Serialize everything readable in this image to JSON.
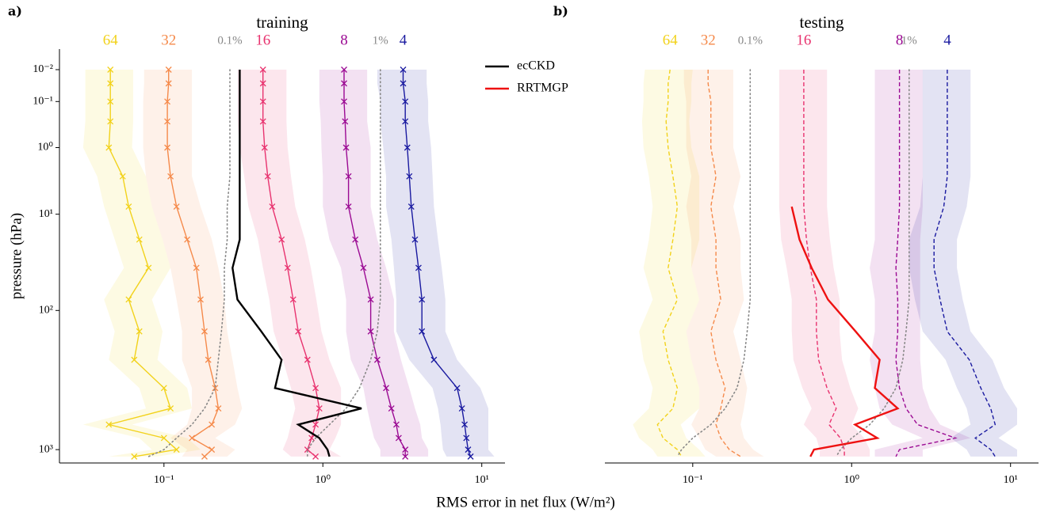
{
  "x_axis_label": "RMS error in net flux (W/m²)",
  "chart_data": [
    {
      "type": "line",
      "panel_label": "a)",
      "title": "training",
      "ylabel": "pressure (hPa)",
      "log_x": true,
      "yscale": "power",
      "yscale_exponent": 0.16,
      "y_inverted": true,
      "xlim": [
        0.022,
        14
      ],
      "ylim": [
        0.0012,
        1200
      ],
      "xticks": [
        {
          "value": 0.1,
          "label": "10⁻¹"
        },
        {
          "value": 1,
          "label": "10⁰"
        },
        {
          "value": 10,
          "label": "10¹"
        }
      ],
      "yticks": [
        {
          "value": 0.01,
          "label": "10⁻²"
        },
        {
          "value": 0.1,
          "label": "10⁻¹"
        },
        {
          "value": 1,
          "label": "10⁰"
        },
        {
          "value": 10,
          "label": "10¹"
        },
        {
          "value": 100,
          "label": "10²"
        },
        {
          "value": 1000,
          "label": "10³"
        }
      ],
      "legend": "upper right",
      "y": [
        0.01,
        0.03,
        0.1,
        0.3,
        1,
        3,
        8,
        20,
        40,
        80,
        150,
        250,
        400,
        550,
        700,
        850,
        1000,
        1100
      ],
      "series": [
        {
          "name": "64",
          "color": "#f2d21b",
          "style": "solid",
          "marker": "x",
          "values": [
            0.046,
            0.046,
            0.046,
            0.046,
            0.045,
            0.055,
            0.06,
            0.07,
            0.08,
            0.06,
            0.07,
            0.065,
            0.1,
            0.11,
            0.045,
            0.1,
            0.12,
            0.065
          ],
          "lower": [
            0.032,
            0.032,
            0.032,
            0.032,
            0.031,
            0.038,
            0.042,
            0.049,
            0.056,
            0.042,
            0.049,
            0.045,
            0.07,
            0.077,
            0.031,
            0.07,
            0.084,
            0.045
          ],
          "upper": [
            0.064,
            0.064,
            0.064,
            0.064,
            0.063,
            0.077,
            0.084,
            0.098,
            0.11,
            0.084,
            0.098,
            0.091,
            0.14,
            0.15,
            0.063,
            0.14,
            0.17,
            0.091
          ]
        },
        {
          "name": "32",
          "color": "#f58a4b",
          "style": "solid",
          "marker": "x",
          "values": [
            0.107,
            0.107,
            0.105,
            0.105,
            0.105,
            0.11,
            0.12,
            0.14,
            0.16,
            0.17,
            0.18,
            0.19,
            0.21,
            0.22,
            0.2,
            0.15,
            0.2,
            0.18
          ],
          "lower": [
            0.075,
            0.075,
            0.074,
            0.074,
            0.074,
            0.077,
            0.084,
            0.098,
            0.11,
            0.12,
            0.13,
            0.13,
            0.15,
            0.15,
            0.14,
            0.11,
            0.14,
            0.13
          ],
          "upper": [
            0.15,
            0.15,
            0.15,
            0.15,
            0.15,
            0.15,
            0.17,
            0.2,
            0.22,
            0.24,
            0.25,
            0.27,
            0.29,
            0.31,
            0.28,
            0.21,
            0.28,
            0.25
          ]
        },
        {
          "name": "0.1%",
          "color": "#888888",
          "style": "dotted",
          "values": [
            0.26,
            0.26,
            0.26,
            0.26,
            0.26,
            0.26,
            0.25,
            0.25,
            0.24,
            0.24,
            0.23,
            0.22,
            0.21,
            0.18,
            0.15,
            0.12,
            0.1,
            0.08
          ]
        },
        {
          "name": "16",
          "color": "#e8336f",
          "style": "solid",
          "marker": "x",
          "values": [
            0.42,
            0.42,
            0.42,
            0.42,
            0.43,
            0.45,
            0.48,
            0.55,
            0.6,
            0.65,
            0.7,
            0.8,
            0.9,
            0.95,
            0.9,
            0.85,
            0.8,
            0.9
          ],
          "lower": [
            0.29,
            0.29,
            0.29,
            0.29,
            0.3,
            0.32,
            0.34,
            0.39,
            0.42,
            0.46,
            0.49,
            0.56,
            0.63,
            0.67,
            0.63,
            0.6,
            0.56,
            0.63
          ],
          "upper": [
            0.59,
            0.59,
            0.59,
            0.59,
            0.6,
            0.63,
            0.67,
            0.77,
            0.84,
            0.91,
            0.98,
            1.1,
            1.3,
            1.3,
            1.3,
            1.2,
            1.1,
            1.3
          ]
        },
        {
          "name": "8",
          "color": "#9b0a93",
          "style": "solid",
          "marker": "x",
          "values": [
            1.36,
            1.36,
            1.36,
            1.38,
            1.4,
            1.45,
            1.45,
            1.6,
            1.8,
            2.0,
            2.0,
            2.2,
            2.5,
            2.7,
            2.9,
            3.0,
            3.3,
            3.3
          ],
          "lower": [
            0.95,
            0.95,
            0.95,
            0.97,
            0.98,
            1.0,
            1.0,
            1.1,
            1.3,
            1.4,
            1.4,
            1.5,
            1.8,
            1.9,
            2.0,
            2.1,
            2.3,
            2.3
          ],
          "upper": [
            1.9,
            1.9,
            1.9,
            1.9,
            2.0,
            2.0,
            2.0,
            2.2,
            2.5,
            2.8,
            2.8,
            3.1,
            3.5,
            3.8,
            4.1,
            4.2,
            4.6,
            4.6
          ]
        },
        {
          "name": "1%",
          "color": "#888888",
          "style": "dotted",
          "values": [
            2.3,
            2.3,
            2.3,
            2.3,
            2.3,
            2.3,
            2.3,
            2.3,
            2.3,
            2.3,
            2.2,
            2.0,
            1.7,
            1.4,
            1.1,
            0.9,
            0.8,
            0.8
          ]
        },
        {
          "name": "4",
          "color": "#1a1aa0",
          "style": "solid",
          "marker": "x",
          "values": [
            3.2,
            3.2,
            3.3,
            3.3,
            3.4,
            3.5,
            3.6,
            3.8,
            4.0,
            4.2,
            4.2,
            5,
            7,
            7.5,
            7.8,
            8,
            8.2,
            8.5
          ],
          "lower": [
            2.2,
            2.2,
            2.3,
            2.3,
            2.4,
            2.5,
            2.5,
            2.7,
            2.8,
            2.9,
            2.9,
            3.5,
            4.9,
            5.3,
            5.5,
            5.6,
            5.7,
            6.0
          ],
          "upper": [
            4.5,
            4.5,
            4.6,
            4.6,
            4.8,
            4.9,
            5.0,
            5.3,
            5.6,
            5.9,
            5.9,
            7.0,
            9.8,
            11,
            11,
            11,
            11,
            12
          ]
        },
        {
          "name": "ecCKD",
          "color": "#000000",
          "style": "solid",
          "in_legend": true,
          "values": [
            0.3,
            0.3,
            0.3,
            0.3,
            0.3,
            0.3,
            0.3,
            0.3,
            0.27,
            0.29,
            0.41,
            0.55,
            0.5,
            1.75,
            0.7,
            0.95,
            1.07,
            1.1
          ]
        }
      ]
    },
    {
      "type": "line",
      "panel_label": "b)",
      "title": "testing",
      "log_x": true,
      "yscale": "power",
      "yscale_exponent": 0.16,
      "y_inverted": true,
      "xlim": [
        0.028,
        15
      ],
      "ylim": [
        0.0012,
        1200
      ],
      "xticks": [
        {
          "value": 0.1,
          "label": "10⁻¹"
        },
        {
          "value": 1,
          "label": "10⁰"
        },
        {
          "value": 10,
          "label": "10¹"
        }
      ],
      "y": [
        0.01,
        0.03,
        0.1,
        0.3,
        1,
        3,
        8,
        20,
        40,
        80,
        150,
        250,
        400,
        550,
        700,
        850,
        1000,
        1100
      ],
      "series": [
        {
          "name": "64",
          "color": "#f2d21b",
          "style": "dashed",
          "values": [
            0.072,
            0.07,
            0.07,
            0.068,
            0.07,
            0.075,
            0.08,
            0.075,
            0.07,
            0.08,
            0.065,
            0.07,
            0.08,
            0.075,
            0.06,
            0.065,
            0.08,
            0.085
          ],
          "lower": [
            0.05,
            0.049,
            0.049,
            0.048,
            0.049,
            0.053,
            0.056,
            0.053,
            0.049,
            0.056,
            0.046,
            0.049,
            0.056,
            0.053,
            0.042,
            0.046,
            0.056,
            0.06
          ],
          "upper": [
            0.1,
            0.098,
            0.098,
            0.095,
            0.098,
            0.11,
            0.11,
            0.11,
            0.098,
            0.11,
            0.091,
            0.098,
            0.11,
            0.11,
            0.084,
            0.091,
            0.11,
            0.12
          ]
        },
        {
          "name": "32",
          "color": "#f58a4b",
          "style": "dashed",
          "values": [
            0.125,
            0.125,
            0.13,
            0.13,
            0.13,
            0.14,
            0.13,
            0.14,
            0.14,
            0.15,
            0.13,
            0.14,
            0.16,
            0.15,
            0.14,
            0.15,
            0.17,
            0.2
          ],
          "lower": [
            0.088,
            0.088,
            0.091,
            0.091,
            0.091,
            0.098,
            0.091,
            0.098,
            0.098,
            0.11,
            0.091,
            0.098,
            0.11,
            0.11,
            0.098,
            0.11,
            0.12,
            0.14
          ],
          "upper": [
            0.18,
            0.18,
            0.18,
            0.18,
            0.18,
            0.2,
            0.18,
            0.2,
            0.2,
            0.21,
            0.18,
            0.2,
            0.22,
            0.21,
            0.2,
            0.21,
            0.24,
            0.28
          ]
        },
        {
          "name": "0.1%",
          "color": "#888888",
          "style": "dotted",
          "values": [
            0.23,
            0.23,
            0.23,
            0.23,
            0.23,
            0.23,
            0.23,
            0.23,
            0.23,
            0.23,
            0.22,
            0.21,
            0.19,
            0.16,
            0.13,
            0.1,
            0.085,
            0.08
          ]
        },
        {
          "name": "16",
          "color": "#e8336f",
          "style": "dashed",
          "values": [
            0.5,
            0.5,
            0.5,
            0.5,
            0.5,
            0.5,
            0.5,
            0.52,
            0.55,
            0.6,
            0.6,
            0.62,
            0.7,
            0.8,
            0.72,
            0.85,
            0.9,
            0.9
          ],
          "lower": [
            0.35,
            0.35,
            0.35,
            0.35,
            0.35,
            0.35,
            0.35,
            0.36,
            0.39,
            0.42,
            0.42,
            0.43,
            0.49,
            0.56,
            0.5,
            0.6,
            0.63,
            0.63
          ],
          "upper": [
            0.7,
            0.7,
            0.7,
            0.7,
            0.7,
            0.7,
            0.7,
            0.73,
            0.77,
            0.84,
            0.84,
            0.87,
            0.98,
            1.1,
            1.0,
            1.2,
            1.3,
            1.3
          ]
        },
        {
          "name": "8",
          "color": "#9b0a93",
          "style": "dashed",
          "values": [
            2.0,
            2.0,
            2.0,
            2.0,
            2.0,
            2.0,
            2.0,
            1.95,
            1.9,
            1.95,
            1.95,
            1.9,
            2.0,
            2.2,
            2.6,
            4.5,
            2.0,
            1.9
          ],
          "lower": [
            1.4,
            1.4,
            1.4,
            1.4,
            1.4,
            1.4,
            1.4,
            1.4,
            1.3,
            1.4,
            1.4,
            1.3,
            1.4,
            1.5,
            1.8,
            2.8,
            1.4,
            1.4
          ],
          "upper": [
            2.8,
            2.8,
            2.8,
            2.8,
            2.8,
            2.8,
            2.8,
            2.7,
            2.7,
            2.7,
            2.7,
            2.7,
            2.8,
            3.1,
            3.6,
            5.6,
            2.8,
            2.8
          ]
        },
        {
          "name": "1%",
          "color": "#888888",
          "style": "dotted",
          "values": [
            2.3,
            2.3,
            2.3,
            2.3,
            2.3,
            2.3,
            2.3,
            2.3,
            2.3,
            2.3,
            2.2,
            2.1,
            1.9,
            1.6,
            1.3,
            1.0,
            0.85,
            0.8
          ]
        },
        {
          "name": "4",
          "color": "#1a1aa0",
          "style": "dashed",
          "values": [
            4.0,
            4.0,
            4.0,
            4.0,
            4.0,
            4.0,
            3.8,
            3.3,
            3.3,
            3.6,
            4.0,
            5.5,
            6.5,
            7.5,
            8.0,
            6.0,
            7.5,
            8.0
          ],
          "lower": [
            2.8,
            2.8,
            2.8,
            2.8,
            2.8,
            2.8,
            2.7,
            2.3,
            2.3,
            2.5,
            2.8,
            3.9,
            4.6,
            5.3,
            5.6,
            4.2,
            5.3,
            5.6
          ],
          "upper": [
            5.6,
            5.6,
            5.6,
            5.6,
            5.6,
            5.6,
            5.3,
            4.6,
            4.6,
            5.0,
            5.6,
            7.7,
            9.1,
            11,
            11,
            8.4,
            11,
            11
          ]
        },
        {
          "name": "RRTMGP",
          "color": "#ee1111",
          "style": "solid",
          "in_legend": true,
          "values": [
            null,
            null,
            null,
            null,
            null,
            null,
            0.42,
            0.47,
            0.56,
            0.71,
            1.06,
            1.5,
            1.4,
            1.95,
            1.05,
            1.45,
            0.58,
            0.55
          ]
        }
      ]
    }
  ]
}
